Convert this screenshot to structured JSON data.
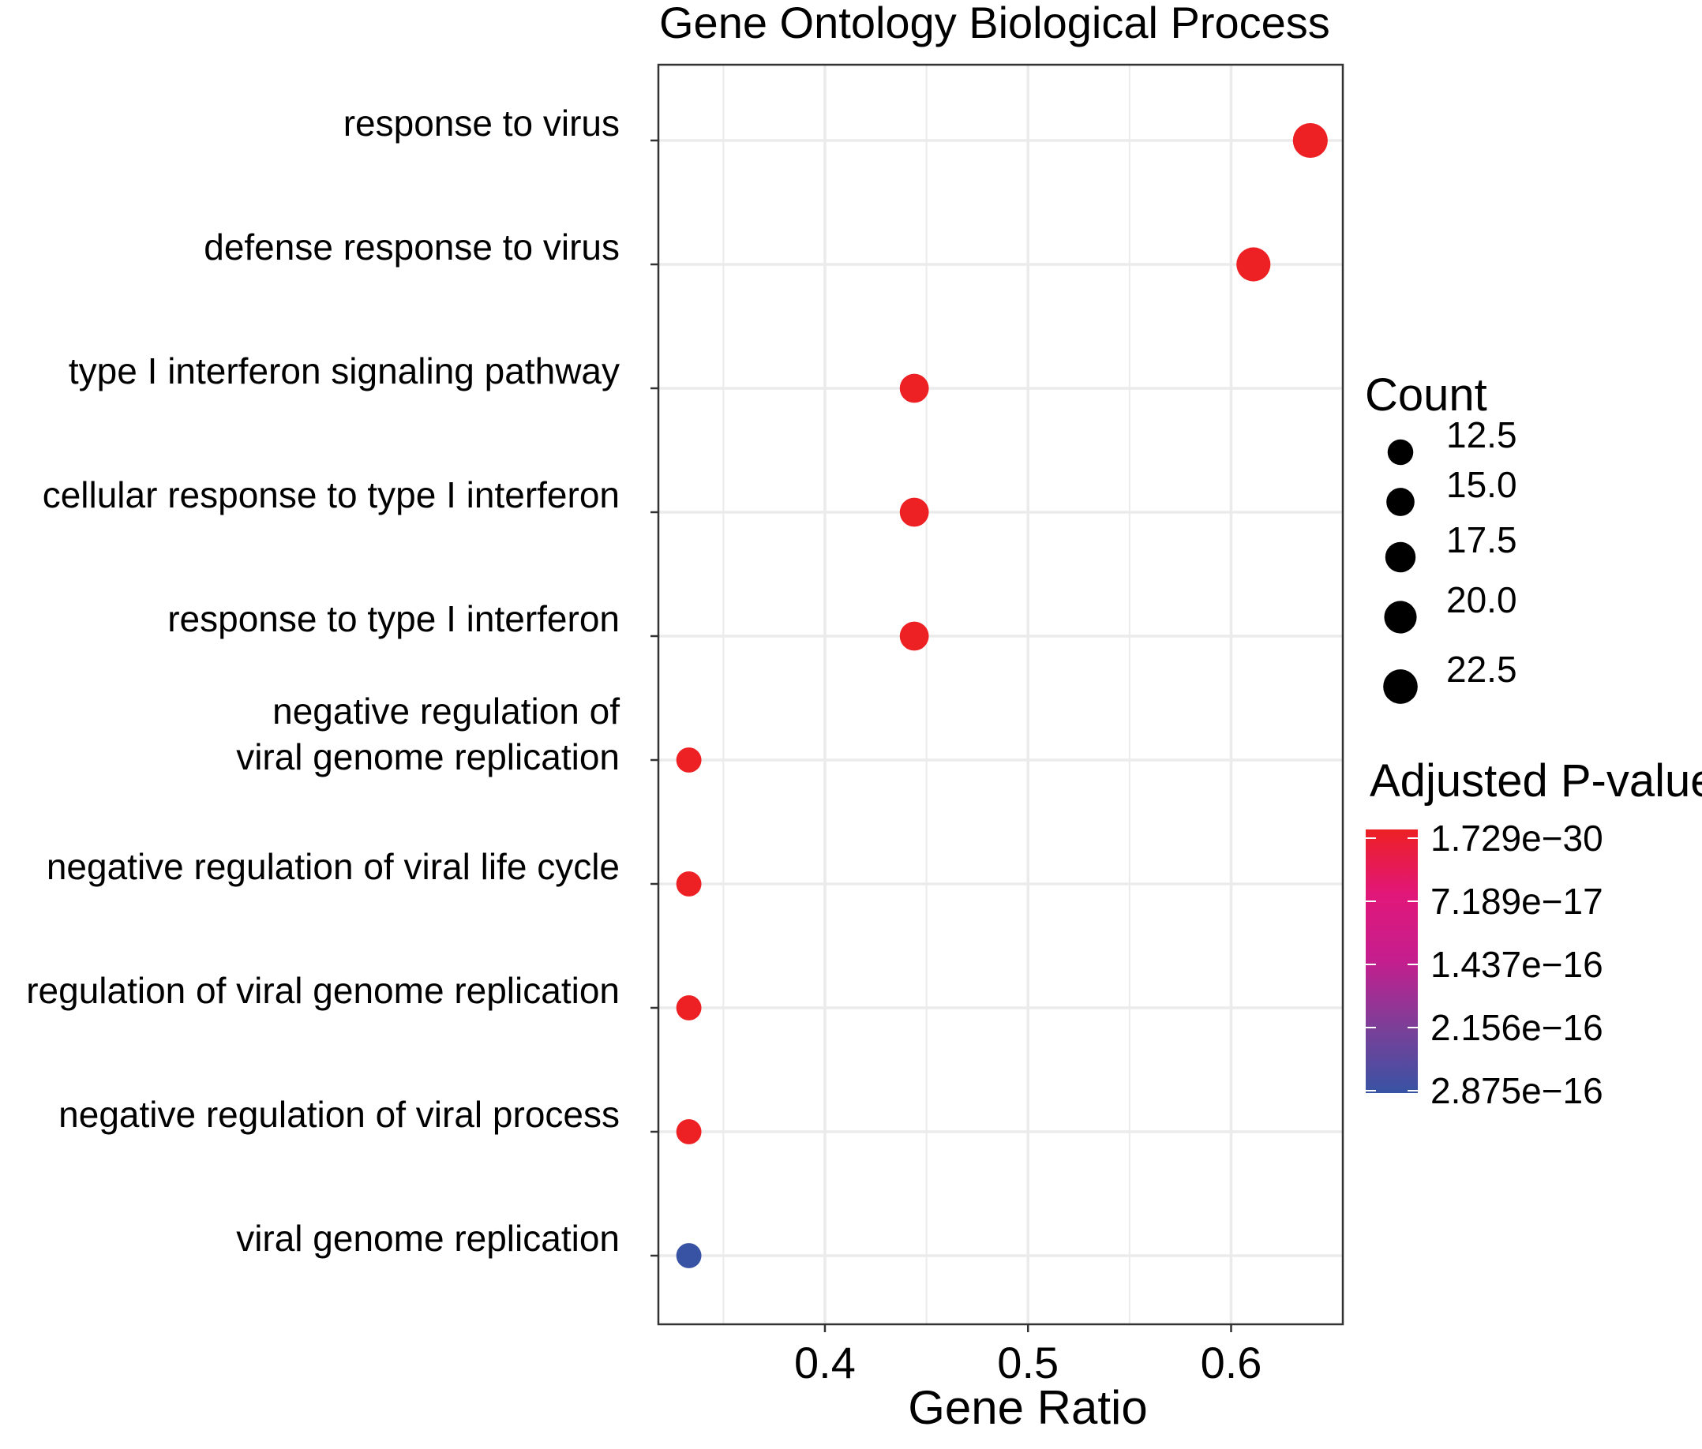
{
  "chart_data": {
    "type": "scatter",
    "title": "Gene Ontology Biological Process",
    "xlabel": "Gene Ratio",
    "ylabel": "",
    "xlim": [
      0.318,
      0.655
    ],
    "x_ticks": [
      "0.4",
      "0.5",
      "0.6"
    ],
    "x_tick_values": [
      0.4,
      0.5,
      0.6
    ],
    "x_minor_gridlines": [
      0.35,
      0.45,
      0.55
    ],
    "grid": true,
    "categories": [
      "response to virus",
      "defense response to virus",
      "type I interferon signaling pathway",
      "cellular response to type I interferon",
      "response to type I interferon",
      "negative regulation of viral genome replication",
      "negative regulation of viral life cycle",
      "regulation of viral genome replication",
      "negative regulation of viral process",
      "viral genome replication"
    ],
    "category_display_lines": [
      [
        "response to virus"
      ],
      [
        "defense response to virus"
      ],
      [
        "type I interferon signaling pathway"
      ],
      [
        "cellular response to type I interferon"
      ],
      [
        "response to type I interferon"
      ],
      [
        "negative regulation of",
        "viral genome replication"
      ],
      [
        "negative regulation of viral life cycle"
      ],
      [
        "regulation of viral genome replication"
      ],
      [
        "negative regulation of viral process"
      ],
      [
        "viral genome replication"
      ]
    ],
    "points": [
      {
        "category": "response to virus",
        "gene_ratio": 0.639,
        "count": 23,
        "color": "#ed2024"
      },
      {
        "category": "defense response to virus",
        "gene_ratio": 0.611,
        "count": 22,
        "color": "#ed2024"
      },
      {
        "category": "type I interferon signaling pathway",
        "gene_ratio": 0.444,
        "count": 16,
        "color": "#ed2024"
      },
      {
        "category": "cellular response to type I interferon",
        "gene_ratio": 0.444,
        "count": 16,
        "color": "#ed2024"
      },
      {
        "category": "response to type I interferon",
        "gene_ratio": 0.444,
        "count": 16,
        "color": "#ed2024"
      },
      {
        "category": "negative regulation of viral genome replication",
        "gene_ratio": 0.333,
        "count": 12,
        "color": "#ed2024"
      },
      {
        "category": "negative regulation of viral life cycle",
        "gene_ratio": 0.333,
        "count": 12,
        "color": "#ed2024"
      },
      {
        "category": "regulation of viral genome replication",
        "gene_ratio": 0.333,
        "count": 12,
        "color": "#ed2024"
      },
      {
        "category": "negative regulation of viral process",
        "gene_ratio": 0.333,
        "count": 12,
        "color": "#ed2024"
      },
      {
        "category": "viral genome replication",
        "gene_ratio": 0.333,
        "count": 12,
        "color": "#3853a4"
      }
    ],
    "size_legend": {
      "title": "Count",
      "values": [
        12.5,
        15.0,
        17.5,
        20.0,
        22.5
      ],
      "labels": [
        "12.5",
        "15.0",
        "17.5",
        "20.0",
        "22.5"
      ]
    },
    "color_legend": {
      "title": "Adjusted P-value",
      "labels": [
        "1.729e−30",
        "7.189e−17",
        "1.437e−16",
        "2.156e−16",
        "2.875e−16"
      ],
      "colors": [
        "#ed2024",
        "#e1177a",
        "#c41e8e",
        "#7c3f98",
        "#3853a4"
      ]
    },
    "legend_position": "right"
  }
}
